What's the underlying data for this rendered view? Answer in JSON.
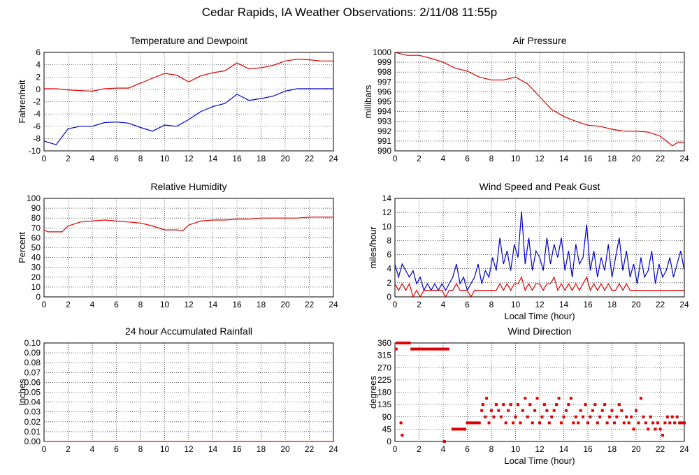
{
  "title": "Cedar Rapids, IA Weather Observations: 2/11/08 11:55p",
  "colors": {
    "red": "#e00000",
    "blue": "#0000cc",
    "grid": "#000000"
  },
  "chart_data": [
    {
      "id": "temp",
      "type": "line",
      "title": "Temperature and Dewpoint",
      "xlabel": "",
      "ylabel": "Fahrenheit",
      "xlim": [
        0,
        24
      ],
      "ylim": [
        -10,
        6
      ],
      "xticks": [
        "0",
        "2",
        "4",
        "6",
        "8",
        "10",
        "12",
        "14",
        "16",
        "18",
        "20",
        "22",
        "24"
      ],
      "yticks": [
        "-10",
        "-8",
        "-6",
        "-4",
        "-2",
        "0",
        "2",
        "4",
        "6"
      ],
      "series": [
        {
          "color": "#e00000",
          "x": [
            0,
            1,
            2,
            3,
            4,
            5,
            6,
            7,
            8,
            9,
            10,
            11,
            12,
            13,
            14,
            15,
            16,
            17,
            18,
            19,
            20,
            21,
            22,
            23,
            24
          ],
          "y": [
            0.1,
            0.1,
            -0.1,
            -0.2,
            -0.3,
            0.1,
            0.2,
            0.2,
            1.0,
            1.8,
            2.6,
            2.3,
            1.2,
            2.2,
            2.7,
            3.0,
            4.3,
            3.3,
            3.5,
            3.9,
            4.6,
            4.9,
            4.8,
            4.6,
            4.6
          ]
        },
        {
          "color": "#0000cc",
          "x": [
            0,
            1,
            2,
            3,
            4,
            5,
            6,
            7,
            8,
            9,
            10,
            11,
            12,
            13,
            14,
            15,
            16,
            17,
            18,
            19,
            20,
            21,
            22,
            23,
            24
          ],
          "y": [
            -8.4,
            -9.0,
            -6.4,
            -6.0,
            -6.0,
            -5.4,
            -5.3,
            -5.5,
            -6.2,
            -6.8,
            -5.8,
            -6.0,
            -4.9,
            -3.6,
            -2.8,
            -2.3,
            -0.8,
            -1.8,
            -1.5,
            -1.1,
            -0.3,
            0.1,
            0.1,
            0.1,
            0.1
          ]
        }
      ]
    },
    {
      "id": "pressure",
      "type": "line",
      "title": "Air Pressure",
      "xlabel": "",
      "ylabel": "millibars",
      "xlim": [
        0,
        24
      ],
      "ylim": [
        990,
        1000
      ],
      "xticks": [
        "0",
        "2",
        "4",
        "6",
        "8",
        "10",
        "12",
        "14",
        "16",
        "18",
        "20",
        "22",
        "24"
      ],
      "yticks": [
        "990",
        "991",
        "992",
        "993",
        "994",
        "995",
        "996",
        "997",
        "998",
        "999",
        "1000"
      ],
      "series": [
        {
          "color": "#e00000",
          "x": [
            0,
            1,
            2,
            3,
            4,
            5,
            6,
            7,
            8,
            9,
            10,
            11,
            12,
            13,
            14,
            15,
            16,
            17,
            18,
            19,
            20,
            21,
            22,
            23,
            23.5,
            24
          ],
          "y": [
            1000,
            999.7,
            999.7,
            999.4,
            999.0,
            998.4,
            998.1,
            997.5,
            997.2,
            997.2,
            997.5,
            996.8,
            995.5,
            994.2,
            993.5,
            993.0,
            992.6,
            992.5,
            992.2,
            992.0,
            992.0,
            991.9,
            991.5,
            990.5,
            990.9,
            990.8
          ]
        }
      ]
    },
    {
      "id": "humidity",
      "type": "line",
      "title": "Relative Humidity",
      "xlabel": "",
      "ylabel": "Percent",
      "xlim": [
        0,
        24
      ],
      "ylim": [
        0,
        100
      ],
      "xticks": [
        "0",
        "2",
        "4",
        "6",
        "8",
        "10",
        "12",
        "14",
        "16",
        "18",
        "20",
        "22",
        "24"
      ],
      "yticks": [
        "0",
        "10",
        "20",
        "30",
        "40",
        "50",
        "60",
        "70",
        "80",
        "90",
        "100"
      ],
      "series": [
        {
          "color": "#e00000",
          "x": [
            0,
            0.3,
            1.5,
            2,
            3,
            4,
            5,
            6,
            7,
            8,
            9,
            10,
            11,
            11.5,
            12,
            13,
            14,
            15,
            16,
            17,
            18,
            19,
            20,
            21,
            22,
            23,
            24
          ],
          "y": [
            68,
            66,
            66,
            72,
            76,
            77,
            78,
            77,
            76,
            75,
            72,
            68,
            68,
            67,
            73,
            77,
            78,
            78,
            79,
            79,
            80,
            80,
            80,
            80,
            81,
            81,
            81
          ]
        }
      ]
    },
    {
      "id": "wind",
      "type": "line",
      "title": "Wind Speed and Peak Gust",
      "xlabel": "Local Time (hour)",
      "ylabel": "miles/hour",
      "xlim": [
        0,
        24
      ],
      "ylim": [
        0,
        15
      ],
      "xticks": [
        "0",
        "2",
        "4",
        "6",
        "8",
        "10",
        "12",
        "14",
        "16",
        "18",
        "20",
        "22",
        "24"
      ],
      "yticks": [
        "0",
        "2",
        "4",
        "6",
        "8",
        "10",
        "12",
        "14"
      ],
      "series": [
        {
          "color": "#0000cc",
          "x": [
            0,
            0.3,
            0.6,
            0.9,
            1.2,
            1.5,
            1.8,
            2.1,
            2.4,
            2.7,
            3,
            3.3,
            3.6,
            3.9,
            4.2,
            4.5,
            4.8,
            5.1,
            5.4,
            5.7,
            6,
            6.3,
            6.6,
            6.9,
            7.2,
            7.5,
            7.8,
            8.1,
            8.4,
            8.7,
            9,
            9.3,
            9.6,
            9.9,
            10.2,
            10.5,
            10.8,
            11.1,
            11.4,
            11.7,
            12,
            12.3,
            12.6,
            12.9,
            13.2,
            13.5,
            13.8,
            14.1,
            14.4,
            14.7,
            15,
            15.3,
            15.6,
            15.9,
            16.2,
            16.5,
            16.8,
            17.1,
            17.4,
            17.7,
            18,
            18.3,
            18.6,
            18.9,
            19.2,
            19.5,
            19.8,
            20.1,
            20.4,
            20.7,
            21,
            21.3,
            21.6,
            21.9,
            22.2,
            22.5,
            22.8,
            23.1,
            23.4,
            23.7,
            24
          ],
          "y": [
            5,
            3,
            5,
            4,
            3,
            4,
            2,
            3,
            1,
            2,
            1,
            2,
            1,
            2,
            1,
            2,
            3,
            5,
            2,
            3,
            1,
            2,
            3,
            5,
            2,
            4,
            3,
            6,
            4,
            9,
            5,
            7,
            4,
            8,
            6,
            13,
            5,
            9,
            4,
            7,
            6,
            4,
            9,
            5,
            8,
            6,
            9,
            4,
            7,
            3,
            8,
            5,
            6,
            11,
            4,
            7,
            3,
            6,
            4,
            8,
            3,
            6,
            9,
            4,
            7,
            3,
            5,
            2,
            6,
            3,
            4,
            7,
            2,
            5,
            3,
            4,
            6,
            3,
            5,
            7,
            4
          ]
        },
        {
          "color": "#e00000",
          "x": [
            0,
            0.3,
            0.6,
            0.9,
            1.2,
            1.5,
            1.8,
            2.1,
            2.4,
            2.7,
            3,
            3.3,
            3.6,
            3.9,
            4.2,
            4.5,
            4.8,
            5.1,
            5.4,
            5.7,
            6,
            6.3,
            6.6,
            6.9,
            7.2,
            7.5,
            7.8,
            8.1,
            8.4,
            8.7,
            9,
            9.3,
            9.6,
            9.9,
            10.2,
            10.5,
            10.8,
            11.1,
            11.4,
            11.7,
            12,
            12.3,
            12.6,
            12.9,
            13.2,
            13.5,
            13.8,
            14.1,
            14.4,
            14.7,
            15,
            15.3,
            15.6,
            15.9,
            16.2,
            16.5,
            16.8,
            17.1,
            17.4,
            17.7,
            18,
            18.3,
            18.6,
            18.9,
            19.2,
            19.5,
            19.8,
            20.1,
            20.4,
            20.7,
            21,
            21.3,
            21.6,
            21.9,
            22.2,
            22.5,
            22.8,
            23.1,
            23.4,
            23.7,
            24
          ],
          "y": [
            2,
            1,
            2,
            1,
            2,
            0,
            1,
            0,
            1,
            1,
            1,
            1,
            1,
            1,
            0,
            1,
            1,
            2,
            1,
            1,
            1,
            0,
            1,
            1,
            1,
            1,
            1,
            1,
            1,
            2,
            1,
            2,
            1,
            2,
            2,
            3,
            1,
            2,
            1,
            2,
            2,
            1,
            2,
            2,
            3,
            1,
            2,
            1,
            2,
            1,
            2,
            1,
            2,
            3,
            1,
            2,
            1,
            2,
            1,
            2,
            1,
            1,
            2,
            1,
            2,
            1,
            1,
            1,
            1,
            1,
            1,
            1,
            1,
            1,
            1,
            1,
            1,
            1,
            1,
            1,
            1
          ]
        }
      ]
    },
    {
      "id": "rain",
      "type": "line",
      "title": "24 hour Accumulated Rainfall",
      "xlabel": "",
      "ylabel": "Inches",
      "xlim": [
        0,
        24
      ],
      "ylim": [
        0,
        0.1
      ],
      "xticks": [
        "0",
        "2",
        "4",
        "6",
        "8",
        "10",
        "12",
        "14",
        "16",
        "18",
        "20",
        "22",
        "24"
      ],
      "yticks": [
        "0.00",
        "0.01",
        "0.02",
        "0.03",
        "0.04",
        "0.05",
        "0.06",
        "0.07",
        "0.08",
        "0.09",
        "0.10"
      ],
      "series": [
        {
          "color": "#e00000",
          "x": [
            0,
            24
          ],
          "y": [
            0,
            0
          ]
        }
      ]
    },
    {
      "id": "direction",
      "type": "scatter",
      "title": "Wind Direction",
      "xlabel": "Local Time (hour)",
      "ylabel": "degrees",
      "xlim": [
        0,
        24
      ],
      "ylim": [
        0,
        360
      ],
      "xticks": [
        "0",
        "2",
        "4",
        "6",
        "8",
        "10",
        "12",
        "14",
        "16",
        "18",
        "20",
        "22",
        "24"
      ],
      "yticks": [
        "0",
        "45",
        "90",
        "135",
        "180",
        "225",
        "270",
        "315",
        "360"
      ],
      "series": [
        {
          "color": "#e00000",
          "x": [
            0.1,
            0.2,
            0.3,
            0.4,
            0.5,
            0.6,
            0.7,
            0.8,
            0.9,
            1.0,
            1.1,
            1.2,
            1.4,
            1.6,
            1.8,
            2.0,
            2.2,
            2.4,
            2.6,
            2.8,
            3.0,
            3.2,
            3.4,
            3.6,
            3.8,
            4.0,
            4.2,
            4.4,
            0.5,
            0.6,
            4.1,
            4.8,
            5.0,
            5.2,
            5.4,
            5.6,
            5.8,
            6.0,
            6.2,
            6.4,
            6.6,
            6.8,
            7.0,
            7.2,
            7.3,
            7.5,
            7.6,
            7.8,
            8.0,
            8.2,
            8.4,
            8.6,
            8.8,
            9.0,
            9.2,
            9.4,
            9.6,
            9.8,
            10.0,
            10.2,
            10.4,
            10.6,
            10.8,
            11.0,
            11.2,
            11.4,
            11.6,
            11.8,
            12.0,
            12.2,
            12.4,
            12.6,
            12.8,
            13.0,
            13.2,
            13.4,
            13.6,
            13.8,
            14.0,
            14.2,
            14.4,
            14.6,
            14.8,
            15.0,
            15.2,
            15.4,
            15.6,
            15.8,
            16.0,
            16.2,
            16.4,
            16.6,
            16.8,
            17.0,
            17.2,
            17.4,
            17.6,
            17.8,
            18.0,
            18.2,
            18.4,
            18.6,
            18.8,
            19.0,
            19.2,
            19.4,
            19.6,
            19.8,
            20.0,
            20.2,
            20.4,
            20.6,
            20.8,
            21.0,
            21.2,
            21.4,
            21.6,
            21.8,
            22.0,
            22.2,
            22.4,
            22.6,
            22.8,
            23.0,
            23.2,
            23.4,
            23.6,
            23.8,
            24.0
          ],
          "y": [
            338,
            360,
            360,
            360,
            360,
            360,
            360,
            360,
            360,
            360,
            360,
            360,
            338,
            338,
            338,
            338,
            338,
            338,
            338,
            338,
            338,
            338,
            338,
            338,
            338,
            338,
            338,
            338,
            68,
            23,
            0,
            45,
            45,
            45,
            45,
            45,
            45,
            68,
            68,
            68,
            68,
            68,
            68,
            113,
            135,
            90,
            158,
            68,
            113,
            90,
            135,
            113,
            90,
            135,
            68,
            113,
            135,
            68,
            90,
            135,
            68,
            113,
            158,
            90,
            135,
            68,
            113,
            158,
            68,
            90,
            135,
            113,
            68,
            90,
            113,
            135,
            158,
            68,
            90,
            113,
            135,
            158,
            68,
            90,
            68,
            113,
            90,
            135,
            68,
            90,
            113,
            135,
            68,
            90,
            113,
            135,
            68,
            90,
            113,
            68,
            90,
            135,
            113,
            68,
            90,
            68,
            90,
            45,
            113,
            68,
            158,
            90,
            68,
            45,
            90,
            68,
            45,
            68,
            45,
            23,
            68,
            90,
            68,
            90,
            68,
            90,
            68,
            68,
            68
          ]
        }
      ]
    }
  ]
}
